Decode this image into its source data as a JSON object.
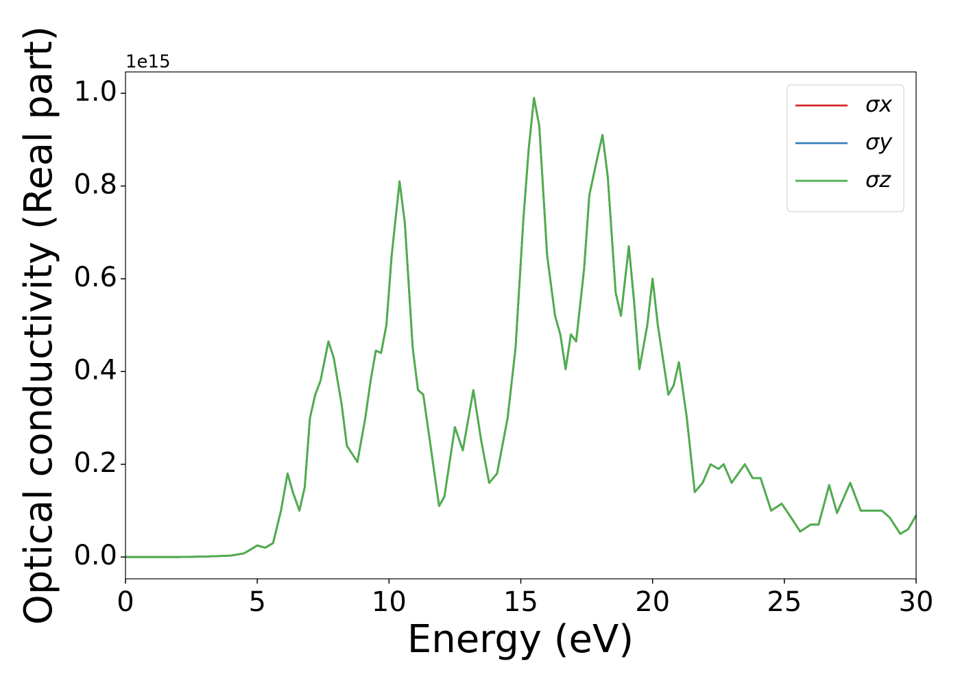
{
  "chart_data": {
    "type": "line",
    "x_label": "Energy (eV)",
    "y_label": "Optical conductivity (Real part)",
    "y_offset_label": "1e15",
    "xlim": [
      0,
      30
    ],
    "xticks": [
      0,
      5,
      10,
      15,
      20,
      25,
      30
    ],
    "ylim": [
      -0.047,
      1.046
    ],
    "yticks": [
      {
        "value": 0,
        "label": "0.0"
      },
      {
        "value": 0.2,
        "label": "0.2"
      },
      {
        "value": 0.4,
        "label": "0.4"
      },
      {
        "value": 0.6,
        "label": "0.6"
      },
      {
        "value": 0.8,
        "label": "0.8"
      },
      {
        "value": 1,
        "label": "1.0"
      }
    ],
    "grid": false,
    "legend": "upper right",
    "x": [
      0,
      1,
      2,
      3,
      4,
      4.5,
      4.8,
      5.0,
      5.3,
      5.6,
      5.9,
      6.15,
      6.35,
      6.6,
      6.8,
      7.0,
      7.2,
      7.4,
      7.7,
      7.9,
      8.2,
      8.4,
      8.8,
      9.1,
      9.3,
      9.5,
      9.7,
      9.9,
      10.1,
      10.4,
      10.6,
      10.9,
      11.1,
      11.3,
      11.6,
      11.9,
      12.1,
      12.5,
      12.8,
      13.2,
      13.5,
      13.8,
      14.1,
      14.5,
      14.8,
      15.1,
      15.3,
      15.5,
      15.7,
      16.0,
      16.3,
      16.5,
      16.7,
      16.9,
      17.1,
      17.4,
      17.6,
      17.9,
      18.1,
      18.3,
      18.6,
      18.8,
      19.1,
      19.3,
      19.5,
      19.8,
      20.0,
      20.2,
      20.6,
      20.8,
      21.0,
      21.3,
      21.6,
      21.9,
      22.2,
      22.5,
      22.7,
      23.0,
      23.5,
      23.8,
      24.1,
      24.5,
      24.9,
      25.2,
      25.6,
      26.0,
      26.3,
      26.7,
      27.0,
      27.5,
      27.9,
      28.3,
      28.7,
      29.0,
      29.4,
      29.7,
      30
    ],
    "series": [
      {
        "name": "σx",
        "color": "#d62728",
        "values": [
          0,
          0,
          0,
          0.001,
          0.003,
          0.008,
          0.018,
          0.025,
          0.02,
          0.03,
          0.1,
          0.18,
          0.14,
          0.1,
          0.15,
          0.3,
          0.35,
          0.38,
          0.465,
          0.43,
          0.33,
          0.24,
          0.205,
          0.3,
          0.38,
          0.445,
          0.44,
          0.5,
          0.65,
          0.81,
          0.72,
          0.45,
          0.36,
          0.35,
          0.23,
          0.11,
          0.13,
          0.28,
          0.23,
          0.36,
          0.25,
          0.16,
          0.18,
          0.3,
          0.45,
          0.73,
          0.88,
          0.99,
          0.93,
          0.65,
          0.52,
          0.48,
          0.405,
          0.48,
          0.465,
          0.62,
          0.78,
          0.86,
          0.91,
          0.82,
          0.57,
          0.52,
          0.67,
          0.55,
          0.405,
          0.5,
          0.6,
          0.5,
          0.35,
          0.37,
          0.42,
          0.3,
          0.14,
          0.16,
          0.2,
          0.19,
          0.2,
          0.16,
          0.2,
          0.17,
          0.17,
          0.1,
          0.115,
          0.09,
          0.055,
          0.07,
          0.07,
          0.155,
          0.095,
          0.16,
          0.1,
          0.1,
          0.1,
          0.085,
          0.05,
          0.06,
          0.09
        ]
      },
      {
        "name": "σy",
        "color": "#377eb8",
        "values": [
          0,
          0,
          0,
          0.001,
          0.003,
          0.008,
          0.018,
          0.025,
          0.02,
          0.03,
          0.1,
          0.18,
          0.14,
          0.1,
          0.15,
          0.3,
          0.35,
          0.38,
          0.465,
          0.43,
          0.33,
          0.24,
          0.205,
          0.3,
          0.38,
          0.445,
          0.44,
          0.5,
          0.65,
          0.81,
          0.72,
          0.45,
          0.36,
          0.35,
          0.23,
          0.11,
          0.13,
          0.28,
          0.23,
          0.36,
          0.25,
          0.16,
          0.18,
          0.3,
          0.45,
          0.73,
          0.88,
          0.99,
          0.93,
          0.65,
          0.52,
          0.48,
          0.405,
          0.48,
          0.465,
          0.62,
          0.78,
          0.86,
          0.91,
          0.82,
          0.57,
          0.52,
          0.67,
          0.55,
          0.405,
          0.5,
          0.6,
          0.5,
          0.35,
          0.37,
          0.42,
          0.3,
          0.14,
          0.16,
          0.2,
          0.19,
          0.2,
          0.16,
          0.2,
          0.17,
          0.17,
          0.1,
          0.115,
          0.09,
          0.055,
          0.07,
          0.07,
          0.155,
          0.095,
          0.16,
          0.1,
          0.1,
          0.1,
          0.085,
          0.05,
          0.06,
          0.09
        ]
      },
      {
        "name": "σz",
        "color": "#4daf4a",
        "values": [
          0,
          0,
          0,
          0.001,
          0.003,
          0.008,
          0.018,
          0.025,
          0.02,
          0.03,
          0.1,
          0.18,
          0.14,
          0.1,
          0.15,
          0.3,
          0.35,
          0.38,
          0.465,
          0.43,
          0.33,
          0.24,
          0.205,
          0.3,
          0.38,
          0.445,
          0.44,
          0.5,
          0.65,
          0.81,
          0.72,
          0.45,
          0.36,
          0.35,
          0.23,
          0.11,
          0.13,
          0.28,
          0.23,
          0.36,
          0.25,
          0.16,
          0.18,
          0.3,
          0.45,
          0.73,
          0.88,
          0.99,
          0.93,
          0.65,
          0.52,
          0.48,
          0.405,
          0.48,
          0.465,
          0.62,
          0.78,
          0.86,
          0.91,
          0.82,
          0.57,
          0.52,
          0.67,
          0.55,
          0.405,
          0.5,
          0.6,
          0.5,
          0.35,
          0.37,
          0.42,
          0.3,
          0.14,
          0.16,
          0.2,
          0.19,
          0.2,
          0.16,
          0.2,
          0.17,
          0.17,
          0.1,
          0.115,
          0.09,
          0.055,
          0.07,
          0.07,
          0.155,
          0.095,
          0.16,
          0.1,
          0.1,
          0.1,
          0.085,
          0.05,
          0.06,
          0.09
        ]
      }
    ]
  }
}
